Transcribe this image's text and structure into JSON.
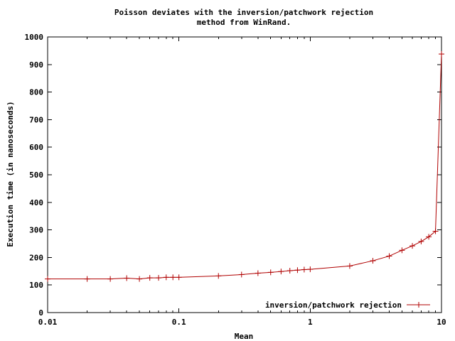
{
  "chart_data": {
    "type": "line",
    "title_line1": "Poisson deviates with the inversion/patchwork rejection",
    "title_line2": "method from WinRand.",
    "xlabel": "Mean",
    "ylabel": "Execution time (in nanoseconds)",
    "x_scale": "log",
    "xlim": [
      0.01,
      10
    ],
    "ylim": [
      0,
      1000
    ],
    "x_ticks": [
      0.01,
      0.1,
      1,
      10
    ],
    "x_tick_labels": [
      "0.01",
      "0.1",
      "1",
      "10"
    ],
    "y_ticks": [
      0,
      100,
      200,
      300,
      400,
      500,
      600,
      700,
      800,
      900,
      1000
    ],
    "y_tick_labels": [
      "0",
      "100",
      "200",
      "300",
      "400",
      "500",
      "600",
      "700",
      "800",
      "900",
      "1000"
    ],
    "grid": false,
    "legend_position": "bottom-right",
    "series": [
      {
        "name": "inversion/patchwork rejection",
        "color": "#b00000",
        "marker": "plus",
        "x": [
          0.01,
          0.02,
          0.03,
          0.04,
          0.05,
          0.06,
          0.07,
          0.08,
          0.09,
          0.1,
          0.2,
          0.3,
          0.4,
          0.5,
          0.6,
          0.7,
          0.8,
          0.9,
          1,
          2,
          3,
          4,
          5,
          6,
          7,
          8,
          9,
          10
        ],
        "y": [
          122,
          122,
          122,
          125,
          122,
          126,
          126,
          128,
          128,
          128,
          133,
          138,
          143,
          146,
          149,
          152,
          154,
          156,
          157,
          169,
          188,
          205,
          226,
          242,
          258,
          275,
          295,
          938
        ]
      }
    ]
  }
}
